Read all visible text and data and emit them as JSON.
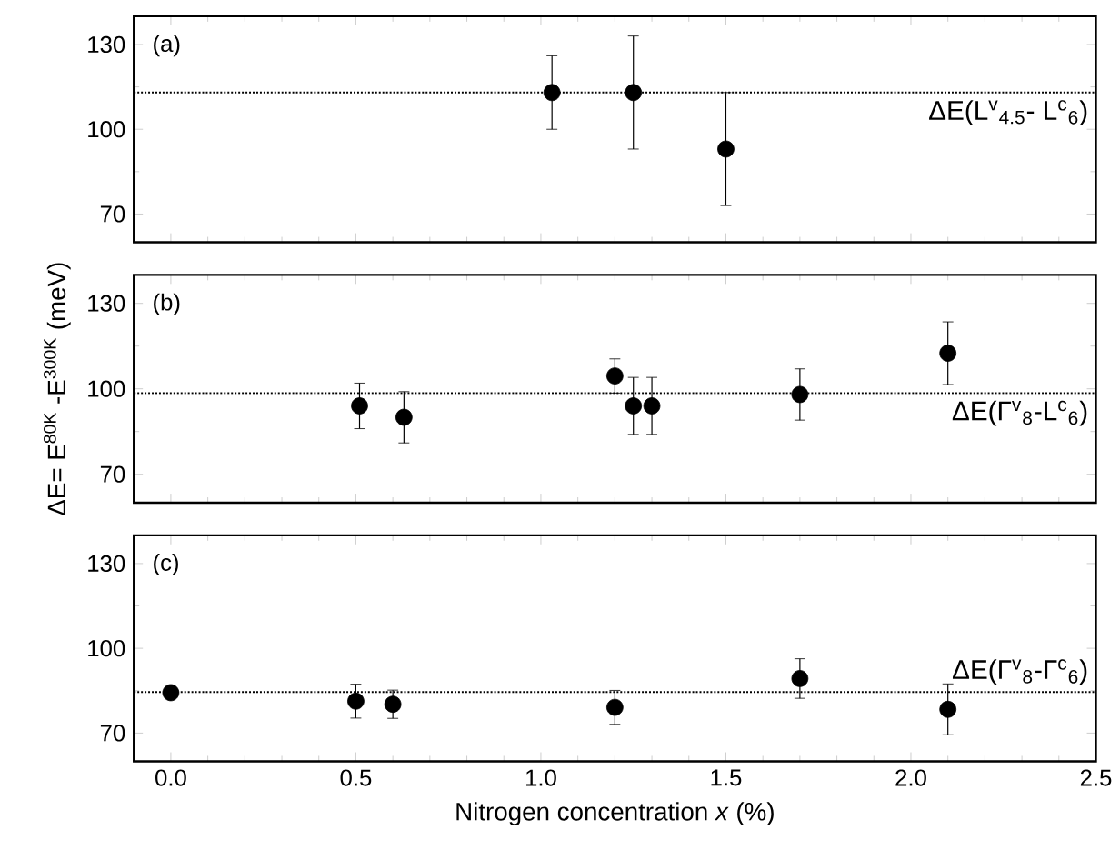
{
  "chart_data": [
    {
      "type": "scatter",
      "x": [
        1.03,
        1.25,
        1.5
      ],
      "values": [
        113,
        113,
        93
      ],
      "errors": [
        13,
        20,
        20
      ],
      "color": "#000000",
      "xlim": [
        -0.1,
        2.5
      ],
      "xticks": [
        0,
        0.5,
        1,
        1.5,
        2,
        2.5
      ],
      "ylim": [
        60,
        140
      ],
      "yticks": [
        70,
        100,
        130
      ],
      "tick_labels": "y",
      "grid": false,
      "ref_lines": [
        {
          "axis": "y",
          "value": 113,
          "label": "ΔE(L$^{v}$$_{4.5}$- L$^{c}$$_{6}$)",
          "line_style": "dotted",
          "color": "#000000"
        }
      ],
      "annotations": [
        "(a)"
      ]
    },
    {
      "type": "scatter",
      "x": [
        0.51,
        0.63,
        1.2,
        1.25,
        1.3,
        1.7,
        2.1
      ],
      "values": [
        94,
        90,
        104.5,
        94,
        94,
        98,
        112.5
      ],
      "errors": [
        8,
        9,
        6,
        10,
        10,
        9,
        11
      ],
      "color": "#000000",
      "xlim": [
        -0.1,
        2.5
      ],
      "xticks": [
        0,
        0.5,
        1,
        1.5,
        2,
        2.5
      ],
      "ylim": [
        60,
        140
      ],
      "yticks": [
        70,
        100,
        130
      ],
      "tick_labels": "y",
      "grid": false,
      "ylabel": "ΔE= E$^{80K}$ -E$^{300K}$ (meV)",
      "ref_lines": [
        {
          "axis": "y",
          "value": 98.5,
          "label": "ΔE(Γ$^{v}$$_{8}$-L$^{c}$$_{6}$)",
          "line_style": "dotted",
          "color": "#000000"
        }
      ],
      "annotations": [
        "(b)"
      ]
    },
    {
      "type": "scatter",
      "x": [
        0,
        0.5,
        0.6,
        1.2,
        1.7,
        2.1
      ],
      "values": [
        84.3,
        81.3,
        80.2,
        79.1,
        89.3,
        78.4
      ],
      "errors": [
        null,
        6,
        5,
        6,
        7,
        9
      ],
      "color": "#000000",
      "xlim": [
        -0.1,
        2.5
      ],
      "xticks": [
        {
          "value": 0,
          "label": "0.0"
        },
        {
          "value": 0.5,
          "label": "0.5"
        },
        {
          "value": 1,
          "label": "1.0"
        },
        {
          "value": 1.5,
          "label": "1.5"
        },
        {
          "value": 2,
          "label": "2.0"
        },
        {
          "value": 2.5,
          "label": "2.5"
        }
      ],
      "ylim": [
        60,
        140
      ],
      "yticks": [
        70,
        100,
        130
      ],
      "grid": false,
      "xlabel": "Nitrogen concentration *x* (%)",
      "ref_lines": [
        {
          "axis": "y",
          "value": 84.5,
          "label": "ΔE(Γ$^{v}$$_{8}$-Γ$^{c}$$_{6}$)",
          "line_style": "dotted",
          "color": "#000000"
        }
      ],
      "annotations": [
        "(c)"
      ]
    }
  ]
}
